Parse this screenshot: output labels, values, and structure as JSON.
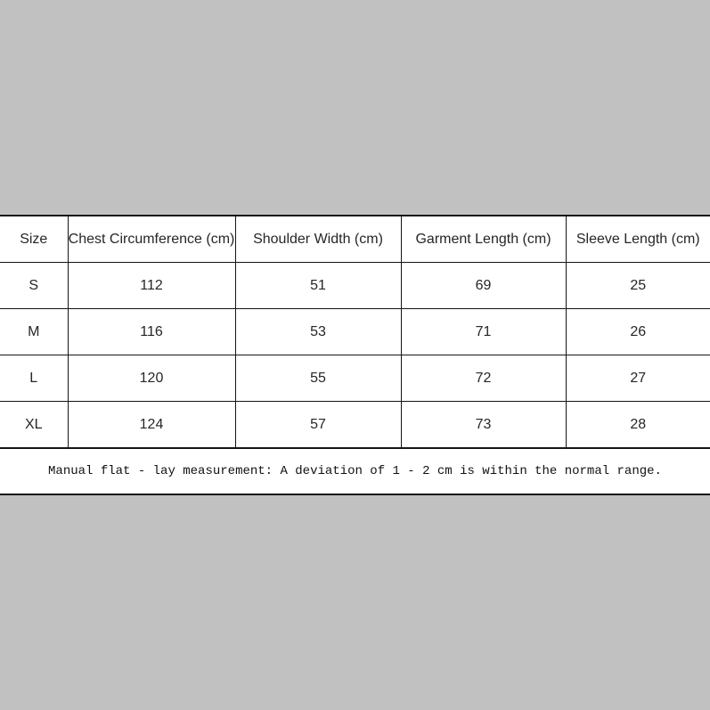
{
  "page": {
    "background_color": "#c1c1c1",
    "surface_color": "#ffffff",
    "border_color": "#141414",
    "text_color": "#262626"
  },
  "chart_data": {
    "type": "table",
    "columns": [
      "Size",
      "Chest Circumference (cm)",
      "Shoulder Width (cm)",
      "Garment Length (cm)",
      "Sleeve Length (cm)"
    ],
    "rows": [
      [
        "S",
        "112",
        "51",
        "69",
        "25"
      ],
      [
        "M",
        "116",
        "53",
        "71",
        "26"
      ],
      [
        "L",
        "120",
        "55",
        "72",
        "27"
      ],
      [
        "XL",
        "124",
        "57",
        "73",
        "28"
      ]
    ],
    "footnote": "Manual flat - lay measurement: A deviation of 1 - 2 cm is within the normal range."
  }
}
